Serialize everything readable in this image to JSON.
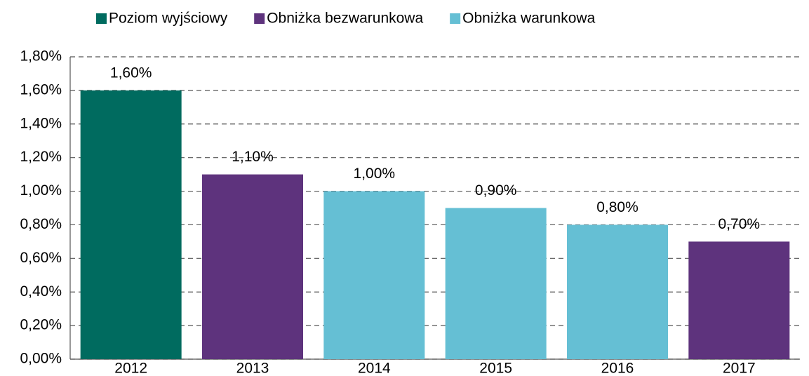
{
  "chart_data": {
    "type": "bar",
    "categories": [
      "2012",
      "2013",
      "2014",
      "2015",
      "2016",
      "2017"
    ],
    "series": [
      {
        "name": "Poziom wyjściowy",
        "color": "#006b5f",
        "values": [
          1.6,
          null,
          null,
          null,
          null,
          null
        ],
        "value_labels": [
          "1,60%",
          null,
          null,
          null,
          null,
          null
        ]
      },
      {
        "name": "Obniżka bezwarunkowa",
        "color": "#5e337d",
        "values": [
          null,
          1.1,
          null,
          null,
          null,
          0.7
        ],
        "value_labels": [
          null,
          "1,10%",
          null,
          null,
          null,
          "0,70%"
        ]
      },
      {
        "name": "Obniżka warunkowa",
        "color": "#65bfd4",
        "values": [
          null,
          null,
          1.0,
          0.9,
          0.8,
          null
        ],
        "value_labels": [
          null,
          null,
          "1,00%",
          "0,90%",
          "0,80%",
          null
        ]
      }
    ],
    "ylim": [
      0,
      1.8
    ],
    "yticks": [
      {
        "value": 0,
        "label": "0,00%"
      },
      {
        "value": 0.2,
        "label": "0,20%"
      },
      {
        "value": 0.4,
        "label": "0,40%"
      },
      {
        "value": 0.6,
        "label": "0,60%"
      },
      {
        "value": 0.8,
        "label": "0,80%"
      },
      {
        "value": 1.0,
        "label": "1,00%"
      },
      {
        "value": 1.2,
        "label": "1,20%"
      },
      {
        "value": 1.4,
        "label": "1,40%"
      },
      {
        "value": 1.6,
        "label": "1,60%"
      },
      {
        "value": 1.8,
        "label": "1,80%"
      }
    ],
    "grid": true,
    "legend": "top"
  }
}
